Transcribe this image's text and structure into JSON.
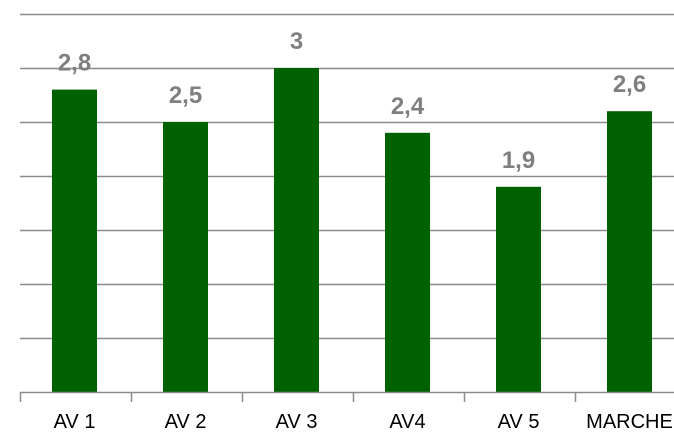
{
  "chart_data": {
    "type": "bar",
    "categories": [
      "AV 1",
      "AV 2",
      "AV 3",
      "AV4",
      "AV 5",
      "MARCHE"
    ],
    "values": [
      2.8,
      2.5,
      3,
      2.4,
      1.9,
      2.6
    ],
    "value_labels": [
      "2,8",
      "2,5",
      "3",
      "2,4",
      "1,9",
      "2,6"
    ],
    "title": "",
    "xlabel": "",
    "ylabel": "",
    "ylim": [
      0,
      3.5
    ],
    "grid": true,
    "legend": "none",
    "colors": {
      "bar": "#006100",
      "grid": "#8c8c8c",
      "label": "#7f7f7f",
      "tick": "#000000"
    }
  }
}
